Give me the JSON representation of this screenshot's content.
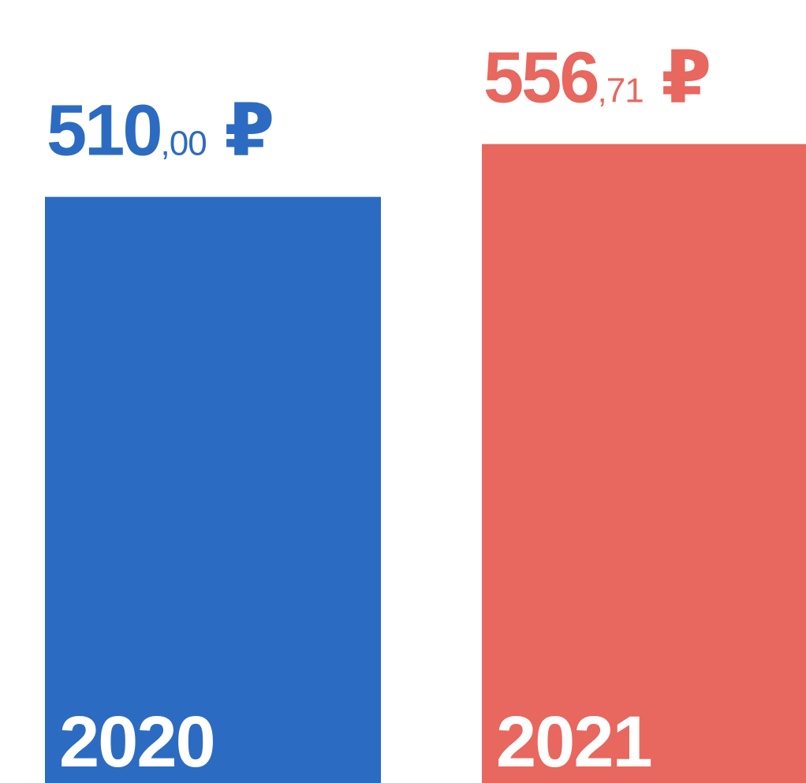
{
  "chart_data": {
    "type": "bar",
    "categories": [
      "2020",
      "2021"
    ],
    "values": [
      510,
      556.71
    ],
    "value_labels": [
      "510,00 ₽",
      "556,71 ₽"
    ],
    "colors": [
      "#2c6bc2",
      "#e8675e"
    ]
  }
}
